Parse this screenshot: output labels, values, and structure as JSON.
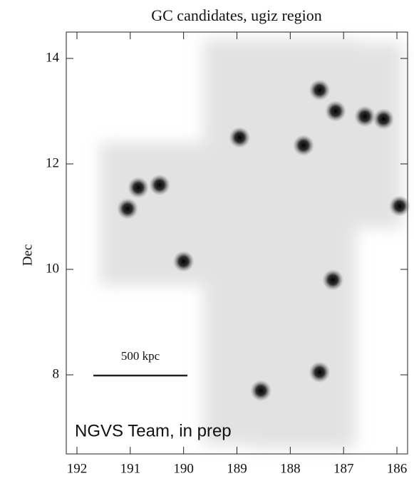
{
  "chart_data": {
    "type": "density",
    "title": "GC candidates, ugiz region",
    "y_label": "Dec",
    "scale_label": "500 kpc",
    "annotation": "NGVS Team, in prep",
    "x": [
      190.85,
      190.45,
      191.05,
      188.95,
      187.75,
      187.45,
      187.15,
      186.6,
      186.25,
      187.45,
      188.55,
      190.0,
      185.95,
      187.2
    ],
    "y": [
      11.55,
      11.6,
      11.15,
      12.5,
      12.35,
      13.4,
      13.0,
      12.9,
      12.85,
      8.05,
      7.7,
      10.15,
      11.2,
      9.8
    ],
    "color": "#000000",
    "xlim": [
      192.2,
      185.8
    ],
    "ylim": [
      6.5,
      14.5
    ],
    "xticks": [
      192,
      191,
      190,
      189,
      188,
      187,
      186
    ],
    "yticks": [
      8,
      10,
      12,
      14
    ]
  }
}
